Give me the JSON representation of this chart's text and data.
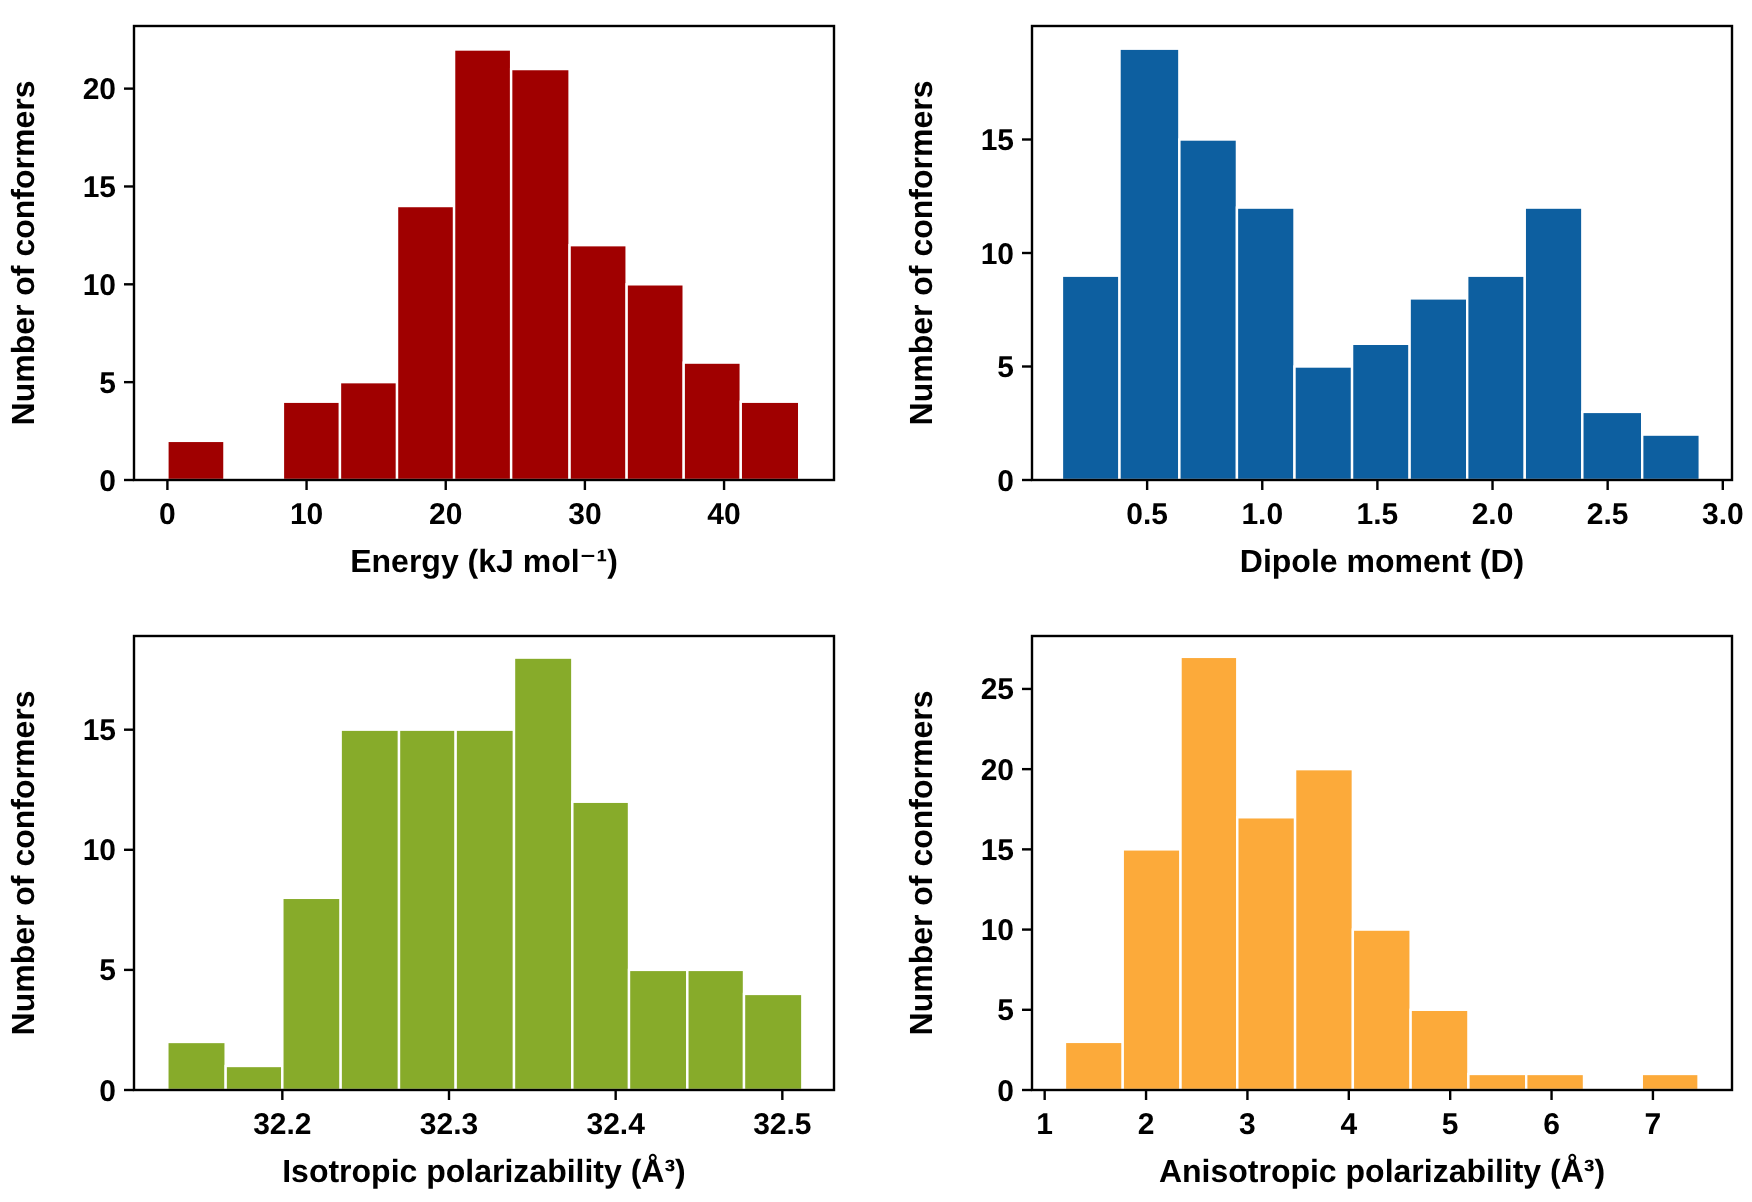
{
  "chart_data": [
    {
      "type": "histogram",
      "xlabel": "Energy (kJ mol⁻¹)",
      "ylabel": "Number of conformers",
      "color": "#a00000",
      "bins": [
        0,
        4.1,
        8.3,
        12.4,
        16.5,
        20.6,
        24.7,
        28.9,
        33.0,
        37.1,
        41.2,
        45.4
      ],
      "values": [
        2,
        0,
        4,
        5,
        14,
        22,
        21,
        12,
        10,
        6,
        4
      ],
      "xlim": [
        -2.4,
        47.9
      ],
      "xticks": [
        0,
        10,
        20,
        30,
        40
      ],
      "ylim": [
        0,
        23.2
      ],
      "yticks": [
        0,
        5,
        10,
        15,
        20
      ],
      "grid": false
    },
    {
      "type": "histogram",
      "xlabel": "Dipole moment (D)",
      "ylabel": "Number of conformers",
      "color": "#0d5fa0",
      "bins": [
        0.13,
        0.38,
        0.64,
        0.89,
        1.14,
        1.39,
        1.64,
        1.89,
        2.14,
        2.39,
        2.65,
        2.9
      ],
      "values": [
        9,
        19,
        15,
        12,
        5,
        6,
        8,
        9,
        12,
        3,
        2
      ],
      "xlim": [
        0.0,
        3.04
      ],
      "xticks": [
        {
          "value": 0.5,
          "label": "0.5"
        },
        {
          "value": 1,
          "label": "1.0"
        },
        {
          "value": 1.5,
          "label": "1.5"
        },
        {
          "value": 2,
          "label": "2.0"
        },
        {
          "value": 2.5,
          "label": "2.5"
        },
        {
          "value": 3,
          "label": "3.0"
        }
      ],
      "ylim": [
        0,
        20
      ],
      "yticks": [
        0,
        5,
        10,
        15
      ],
      "grid": false
    },
    {
      "type": "histogram",
      "xlabel": "Isotropic polarizability (Å³)",
      "ylabel": "Number of conformers",
      "color": "#87ab2a",
      "bins": [
        32.131,
        32.166,
        32.2,
        32.235,
        32.27,
        32.304,
        32.339,
        32.374,
        32.408,
        32.443,
        32.477,
        32.512
      ],
      "values": [
        2,
        1,
        8,
        15,
        15,
        15,
        18,
        12,
        5,
        5,
        4
      ],
      "xlim": [
        32.111,
        32.531
      ],
      "xticks": [
        32.2,
        32.3,
        32.4,
        32.5
      ],
      "ylim": [
        0,
        18.9
      ],
      "yticks": [
        0,
        5,
        10,
        15
      ],
      "grid": false
    },
    {
      "type": "histogram",
      "xlabel": "Anisotropic polarizability (Å³)",
      "ylabel": "Number of conformers",
      "color": "#fcaa3a",
      "bins": [
        1.2,
        1.77,
        2.34,
        2.9,
        3.47,
        4.04,
        4.61,
        5.18,
        5.75,
        6.32,
        6.89,
        7.45
      ],
      "values": [
        3,
        15,
        27,
        17,
        20,
        10,
        5,
        1,
        1,
        0,
        1
      ],
      "xlim": [
        0.875,
        7.78
      ],
      "xticks": [
        1,
        2,
        3,
        4,
        5,
        6,
        7
      ],
      "ylim": [
        0,
        28.3
      ],
      "yticks": [
        0,
        5,
        10,
        15,
        20,
        25
      ],
      "grid": false
    }
  ]
}
